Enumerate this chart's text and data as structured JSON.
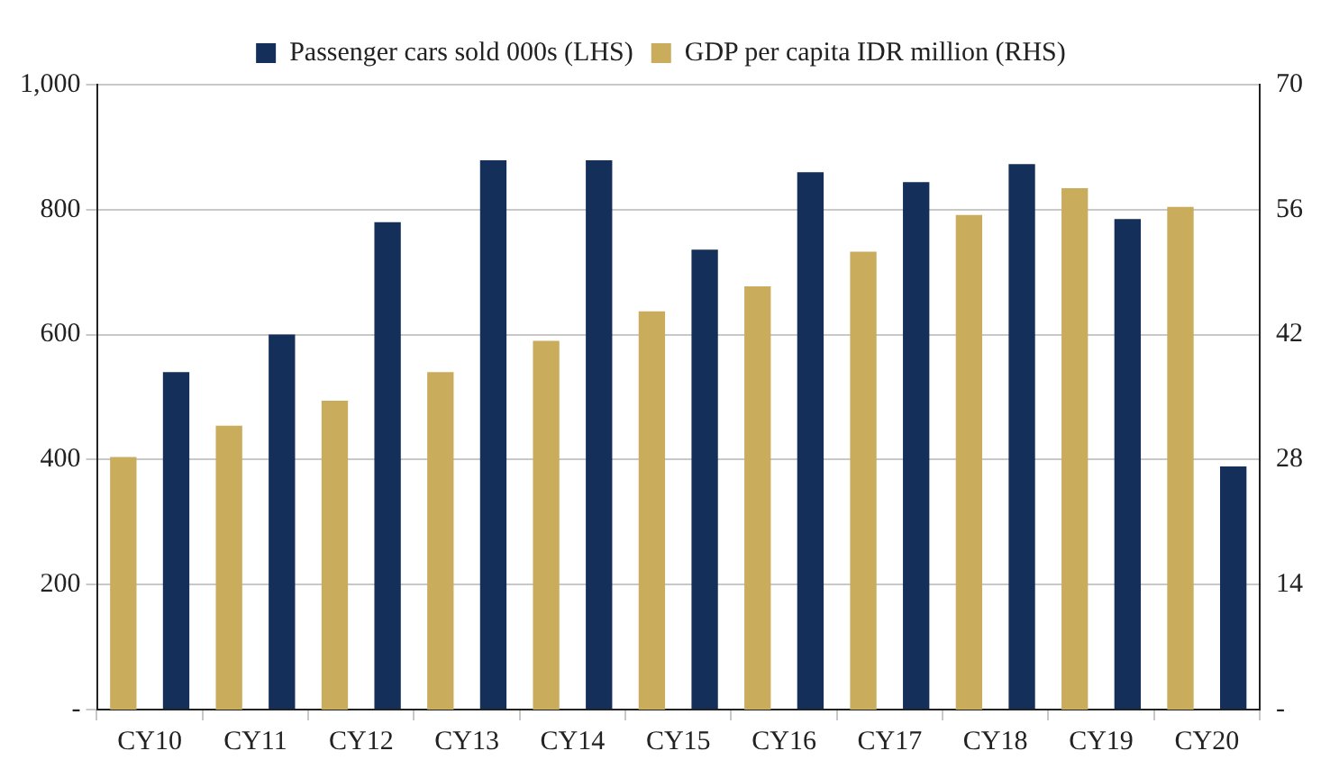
{
  "chart_data": {
    "type": "bar",
    "categories": [
      "CY10",
      "CY11",
      "CY12",
      "CY13",
      "CY14",
      "CY15",
      "CY16",
      "CY17",
      "CY18",
      "CY19",
      "CY20"
    ],
    "series": [
      {
        "name": "Passenger cars sold 000s (LHS)",
        "color": "#14305a",
        "values": [
          540,
          600,
          780,
          879,
          879,
          736,
          860,
          844,
          873,
          785,
          389
        ]
      },
      {
        "name": "GDP per capita IDR million (RHS)",
        "color": "#c9ad5c",
        "axis": "y2",
        "values": [
          28.3,
          31.8,
          34.6,
          37.8,
          41.3,
          44.6,
          47.4,
          51.3,
          55.4,
          58.4,
          56.3
        ]
      }
    ],
    "ylim": [
      0,
      1000
    ],
    "yticks": [
      {
        "value": 0,
        "label": "-"
      },
      200,
      400,
      600,
      800,
      {
        "value": 1000,
        "label": "1,000"
      }
    ],
    "y2lim": [
      0,
      70
    ],
    "y2ticks": [
      {
        "value": 0,
        "label": "-"
      },
      14,
      28,
      42,
      56,
      70
    ],
    "grid": "y",
    "legend": "top"
  }
}
